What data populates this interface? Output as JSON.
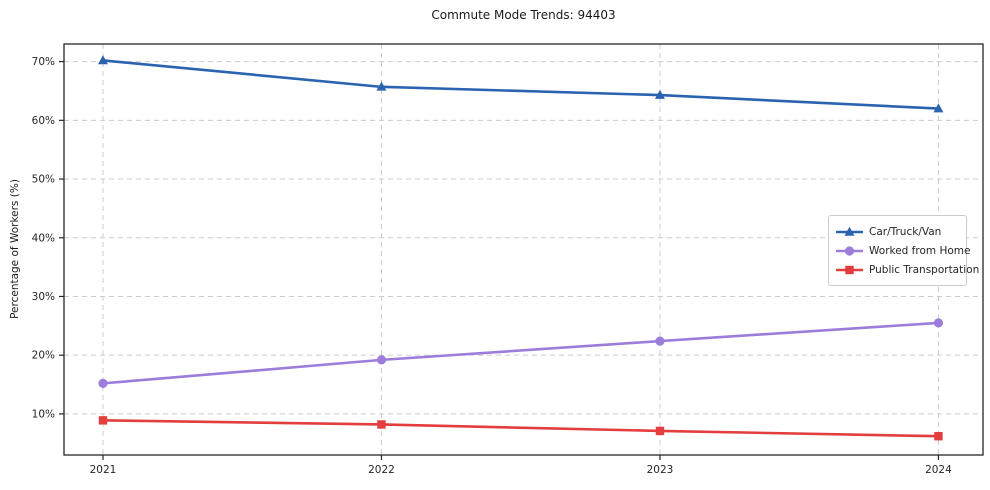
{
  "chart_data": {
    "type": "line",
    "title": "Commute Mode Trends: 94403",
    "xlabel": "",
    "ylabel": "Percentage of Workers (%)",
    "x": [
      2021,
      2022,
      2023,
      2024
    ],
    "xtick_labels": [
      "2021",
      "2022",
      "2023",
      "2024"
    ],
    "yticks": [
      {
        "value": 10,
        "label": "10%"
      },
      {
        "value": 20,
        "label": "20%"
      },
      {
        "value": 30,
        "label": "30%"
      },
      {
        "value": 40,
        "label": "40%"
      },
      {
        "value": 50,
        "label": "50%"
      },
      {
        "value": 60,
        "label": "60%"
      },
      {
        "value": 70,
        "label": "70%"
      }
    ],
    "xlim": [
      2020.86,
      2024.16
    ],
    "ylim": [
      3.0,
      73.0
    ],
    "grid": true,
    "grid_style": "dashed",
    "legend_position": "center-right",
    "colors": {
      "grid": "#cccccc",
      "axis": "#262626",
      "text": "#262626",
      "background": "#ffffff"
    },
    "series": [
      {
        "name": "Car/Truck/Van",
        "color": "#2a63b0",
        "marker": "triangle",
        "values": [
          70.2,
          65.7,
          64.3,
          62.0
        ]
      },
      {
        "name": "Worked from Home",
        "color": "#9d7ddb",
        "marker": "circle",
        "values": [
          15.2,
          19.2,
          22.4,
          25.5
        ]
      },
      {
        "name": "Public Transportation",
        "color": "#e33d3d",
        "marker": "square",
        "values": [
          8.9,
          8.2,
          7.1,
          6.2
        ]
      }
    ]
  }
}
